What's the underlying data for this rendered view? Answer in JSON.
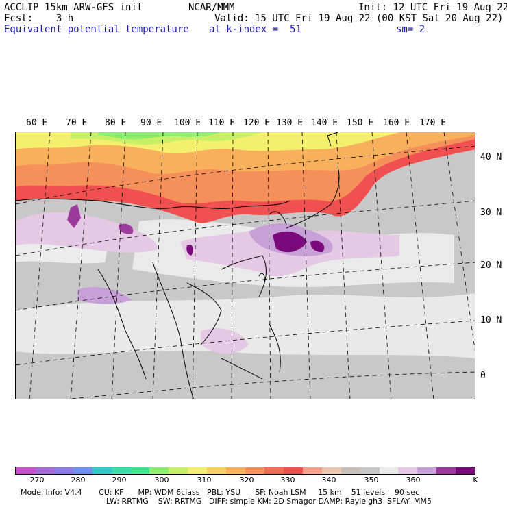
{
  "header": {
    "line1_left": "ACCLIP 15km ARW-GFS init",
    "line1_center": "NCAR/MMM",
    "line1_right": "Init: 12 UTC Fri 19 Aug 22",
    "line2_left": "Fcst:    3 h",
    "line2_right": "Valid: 15 UTC Fri 19 Aug 22 (00 KST Sat 20 Aug 22)",
    "line3_left": "Equivalent potential temperature",
    "line3_center": "at k-index =  51",
    "line3_right": "sm= 2"
  },
  "map": {
    "lon_labels": [
      "60 E",
      "70 E",
      "80 E",
      "90 E",
      "100 E",
      "110 E",
      "120 E",
      "130 E",
      "140 E",
      "150 E",
      "160 E",
      "170 E"
    ],
    "lat_labels": [
      "40 N",
      "30 N",
      "20 N",
      "10 N",
      "0"
    ]
  },
  "colorbar": {
    "colors": [
      "#c850c8",
      "#a46ad8",
      "#8a7ae6",
      "#6e8ef0",
      "#2ec8c8",
      "#34dcaa",
      "#3ce68c",
      "#8cee6e",
      "#c8f066",
      "#f4f06e",
      "#f8d25e",
      "#f8b05c",
      "#f6905a",
      "#f46a52",
      "#f05050",
      "#f4a08c",
      "#ecc8b0",
      "#c8c0b8",
      "#c8c8c8",
      "#ececec",
      "#e4c8e4",
      "#c8a0d8",
      "#9c3a9c",
      "#7a0a7a"
    ],
    "ticks": [
      "270",
      "280",
      "290",
      "300",
      "310",
      "320",
      "330",
      "340",
      "350",
      "360"
    ],
    "unit": "K"
  },
  "footer": {
    "line1": "Model Info: V4.4       CU: KF      MP: WDM 6class   PBL: YSU      SF: Noah LSM     15 km    51 levels    90 sec",
    "line2": "LW: RRTMG    SW: RRTMG   DIFF: simple KM: 2D Smagor DAMP: Rayleigh3  SFLAY: MM5"
  },
  "colors": {
    "title_blue": "#1b1bb0",
    "warm_band": "#f05050",
    "tropics_gray": "#c8c8c8",
    "purple_max": "#7a0a7a"
  }
}
